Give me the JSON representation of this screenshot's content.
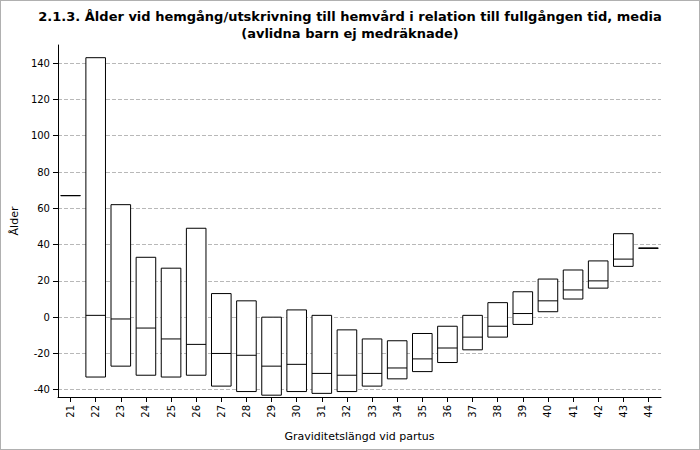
{
  "chart_data": {
    "type": "box",
    "title": "2.1.3. Ålder vid hemgång/utskrivning till hemvård i relation till fullgången tid, media",
    "subtitle": "(avlidna barn ej medräknade)",
    "x_label": "Graviditetslängd vid partus",
    "y_label": "Ålder",
    "categories": [
      "21",
      "22",
      "23",
      "24",
      "25",
      "26",
      "27",
      "28",
      "29",
      "30",
      "31",
      "32",
      "33",
      "34",
      "35",
      "36",
      "37",
      "38",
      "39",
      "40",
      "41",
      "42",
      "43",
      "44"
    ],
    "low": [
      67,
      -33,
      -27,
      -32,
      -33,
      -32,
      -38,
      -41,
      -43,
      -41,
      -42,
      -41,
      -38,
      -34,
      -30,
      -25,
      -18,
      -11,
      -4,
      3,
      10,
      16,
      28,
      38
    ],
    "median": [
      67,
      1,
      -1,
      -6,
      -12,
      -15,
      -20,
      -21,
      -27,
      -26,
      -31,
      -32,
      -31,
      -28,
      -23,
      -17,
      -11,
      -5,
      2,
      9,
      15,
      20,
      32,
      38
    ],
    "high": [
      67,
      143,
      62,
      33,
      27,
      49,
      13,
      9,
      0,
      4,
      1,
      -7,
      -12,
      -13,
      -9,
      -5,
      1,
      8,
      14,
      21,
      26,
      31,
      46,
      38
    ],
    "color": "#000000",
    "ylim": [
      -44,
      150
    ],
    "yticks": [
      -40,
      -20,
      0,
      20,
      40,
      60,
      80,
      100,
      120,
      140
    ],
    "grid": true
  }
}
